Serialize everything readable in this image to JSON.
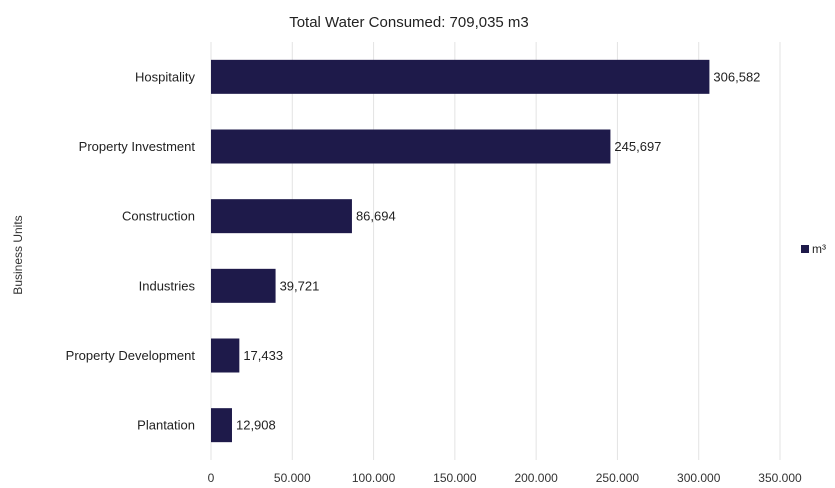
{
  "chart_data": {
    "type": "bar",
    "orientation": "horizontal",
    "title": "Total Water Consumed: 709,035 m3",
    "xlabel": "",
    "ylabel": "Business Units",
    "categories": [
      "Hospitality",
      "Property Investment",
      "Construction",
      "Industries",
      "Property Development",
      "Plantation"
    ],
    "series": [
      {
        "name": "m³",
        "values": [
          306582,
          245697,
          86694,
          39721,
          17433,
          12908
        ],
        "value_labels": [
          "306,582",
          "245,697",
          "86,694",
          "39,721",
          "17,433",
          "12,908"
        ]
      }
    ],
    "xlim": [
      0,
      350000
    ],
    "xticks": [
      0,
      50000,
      100000,
      150000,
      200000,
      250000,
      300000,
      350000
    ],
    "xtick_labels": [
      "0",
      "50.000",
      "100.000",
      "150.000",
      "200.000",
      "250.000",
      "300.000",
      "350.000"
    ],
    "grid": "vertical",
    "legend_position": "right",
    "bar_color": "#1e1a4a",
    "grid_color": "#e3e3e3"
  }
}
